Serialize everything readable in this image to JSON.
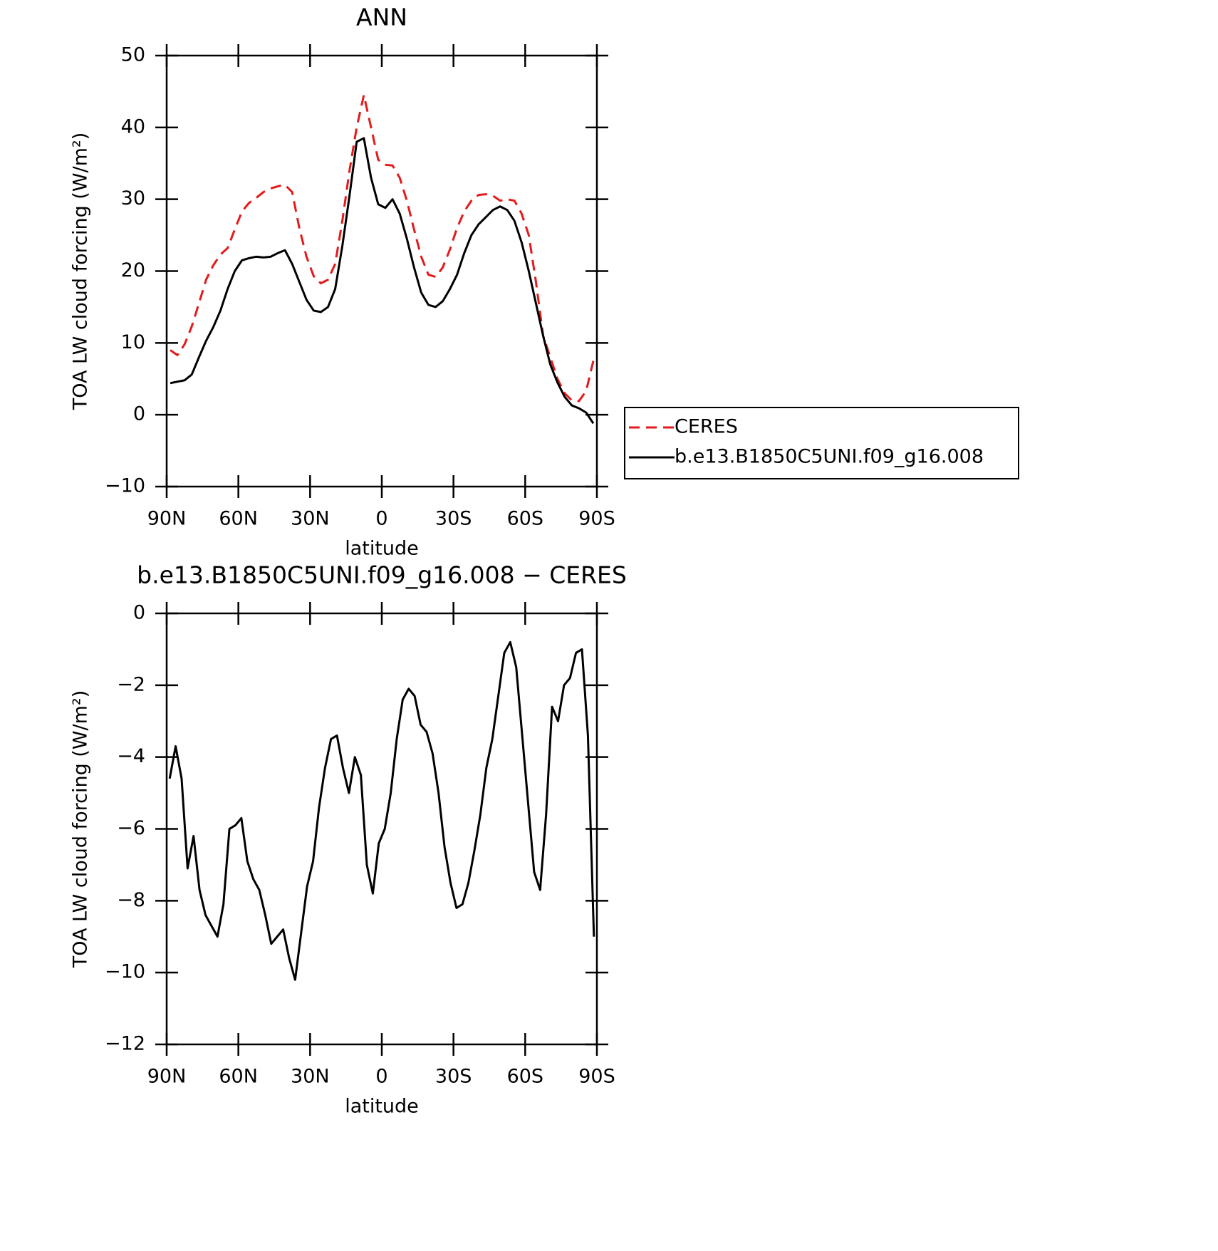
{
  "chart_data": [
    {
      "type": "line",
      "title": "ANN",
      "x_label": "latitude",
      "y_label": "TOA LW cloud forcing (W/m²)",
      "x": [
        88.5,
        85.5,
        82.5,
        79.5,
        76.5,
        73.5,
        70.5,
        67.5,
        64.5,
        61.5,
        58.5,
        55.5,
        52.5,
        49.5,
        46.5,
        43.5,
        40.5,
        37.5,
        34.5,
        31.5,
        28.5,
        25.5,
        22.5,
        19.5,
        16.5,
        13.5,
        10.5,
        7.5,
        4.5,
        1.5,
        -1.5,
        -4.5,
        -7.5,
        -10.5,
        -13.5,
        -16.5,
        -19.5,
        -22.5,
        -25.5,
        -28.5,
        -31.5,
        -34.5,
        -37.5,
        -40.5,
        -43.5,
        -46.5,
        -49.5,
        -52.5,
        -55.5,
        -58.5,
        -61.5,
        -64.5,
        -67.5,
        -70.5,
        -73.5,
        -76.5,
        -79.5,
        -82.5,
        -85.5,
        -88.5
      ],
      "series": [
        {
          "name": "CERES",
          "color": "#e41a1c",
          "dashed": true,
          "values": [
            9.0,
            8.3,
            9.8,
            12.3,
            15.5,
            18.8,
            20.8,
            22.3,
            23.2,
            25.8,
            28.3,
            29.5,
            30.2,
            31.0,
            31.5,
            31.8,
            32.0,
            31.0,
            26.0,
            22.0,
            19.3,
            18.3,
            18.8,
            21.0,
            27.0,
            34.0,
            40.0,
            44.5,
            40.0,
            35.5,
            34.8,
            34.7,
            33.0,
            29.8,
            25.8,
            22.0,
            19.5,
            19.2,
            20.5,
            23.0,
            26.0,
            28.3,
            29.8,
            30.6,
            30.7,
            30.5,
            29.8,
            30.0,
            29.8,
            28.0,
            25.0,
            18.5,
            11.0,
            8.0,
            5.0,
            3.0,
            2.0,
            1.9,
            3.3,
            7.5
          ]
        },
        {
          "name": "b.e13.B1850C5UNI.f09_g16.008",
          "color": "#000000",
          "dashed": false,
          "values": [
            4.4,
            4.6,
            4.8,
            5.6,
            8.0,
            10.3,
            12.2,
            14.5,
            17.5,
            20.0,
            21.5,
            21.8,
            22.0,
            21.9,
            22.0,
            22.5,
            22.9,
            21.0,
            18.5,
            16.0,
            14.5,
            14.3,
            15.0,
            17.5,
            23.5,
            30.5,
            38.0,
            38.5,
            33.0,
            29.3,
            28.8,
            30.0,
            28.0,
            24.5,
            20.5,
            17.0,
            15.3,
            15.0,
            15.8,
            17.5,
            19.5,
            22.5,
            25.0,
            26.5,
            27.5,
            28.5,
            29.0,
            28.5,
            27.0,
            24.0,
            20.0,
            15.5,
            11.0,
            7.0,
            4.5,
            2.5,
            1.3,
            0.9,
            0.3,
            -1.2
          ]
        }
      ],
      "xlim": [
        90,
        -90
      ],
      "xticks": [
        {
          "value": 90,
          "label": "90N"
        },
        {
          "value": 60,
          "label": "60N"
        },
        {
          "value": 30,
          "label": "30N"
        },
        0,
        {
          "value": -30,
          "label": "30S"
        },
        {
          "value": -60,
          "label": "60S"
        },
        {
          "value": -90,
          "label": "90S"
        }
      ],
      "ylim": [
        -10,
        50
      ],
      "yticks": [
        {
          "value": -10,
          "label": "−10"
        },
        0,
        10,
        20,
        30,
        40,
        50
      ],
      "legend": "right"
    },
    {
      "type": "line",
      "title": "b.e13.B1850C5UNI.f09_g16.008 − CERES",
      "x_label": "latitude",
      "y_label": "TOA LW cloud forcing (W/m²)",
      "x": [
        88.75,
        86.25,
        83.75,
        81.25,
        78.75,
        76.25,
        73.75,
        71.25,
        68.75,
        66.25,
        63.75,
        61.25,
        58.75,
        56.25,
        53.75,
        51.25,
        48.75,
        46.25,
        43.75,
        41.25,
        38.75,
        36.25,
        33.75,
        31.25,
        28.75,
        26.25,
        23.75,
        21.25,
        18.75,
        16.25,
        13.75,
        11.25,
        8.75,
        6.25,
        3.75,
        1.25,
        -1.25,
        -3.75,
        -6.25,
        -8.75,
        -11.25,
        -13.75,
        -16.25,
        -18.75,
        -21.25,
        -23.75,
        -26.25,
        -28.75,
        -31.25,
        -33.75,
        -36.25,
        -38.75,
        -41.25,
        -43.75,
        -46.25,
        -48.75,
        -51.25,
        -53.75,
        -56.25,
        -58.75,
        -61.25,
        -63.75,
        -66.25,
        -68.75,
        -71.25,
        -73.75,
        -76.25,
        -78.75,
        -81.25,
        -83.75,
        -86.25,
        -88.75
      ],
      "series": [
        {
          "name": "b.e13.B1850C5UNI.f09_g16.008 − CERES",
          "color": "#000000",
          "dashed": false,
          "values": [
            -4.6,
            -3.7,
            -4.6,
            -7.1,
            -6.2,
            -7.7,
            -8.4,
            -8.7,
            -9.0,
            -8.1,
            -6.0,
            -5.9,
            -5.7,
            -6.9,
            -7.4,
            -7.7,
            -8.4,
            -9.2,
            -9.0,
            -8.8,
            -9.6,
            -10.2,
            -8.9,
            -7.6,
            -6.9,
            -5.4,
            -4.3,
            -3.5,
            -3.4,
            -4.3,
            -5.0,
            -4.0,
            -4.5,
            -7.0,
            -7.8,
            -6.4,
            -6.0,
            -5.0,
            -3.5,
            -2.4,
            -2.1,
            -2.3,
            -3.1,
            -3.3,
            -3.9,
            -5.0,
            -6.5,
            -7.5,
            -8.2,
            -8.1,
            -7.5,
            -6.6,
            -5.6,
            -4.3,
            -3.5,
            -2.3,
            -1.1,
            -0.8,
            -1.5,
            -3.4,
            -5.3,
            -7.2,
            -7.7,
            -5.6,
            -2.6,
            -3.0,
            -2.0,
            -1.8,
            -1.1,
            -1.0,
            -3.4,
            -9.0
          ]
        }
      ],
      "xlim": [
        90,
        -90
      ],
      "xticks": [
        {
          "value": 90,
          "label": "90N"
        },
        {
          "value": 60,
          "label": "60N"
        },
        {
          "value": 30,
          "label": "30N"
        },
        0,
        {
          "value": -30,
          "label": "30S"
        },
        {
          "value": -60,
          "label": "60S"
        },
        {
          "value": -90,
          "label": "90S"
        }
      ],
      "ylim": [
        -12,
        0
      ],
      "yticks": [
        {
          "value": -12,
          "label": "−12"
        },
        {
          "value": -10,
          "label": "−10"
        },
        {
          "value": -8,
          "label": "−8"
        },
        {
          "value": -6,
          "label": "−6"
        },
        {
          "value": -4,
          "label": "−4"
        },
        {
          "value": -2,
          "label": "−2"
        },
        0
      ]
    }
  ]
}
